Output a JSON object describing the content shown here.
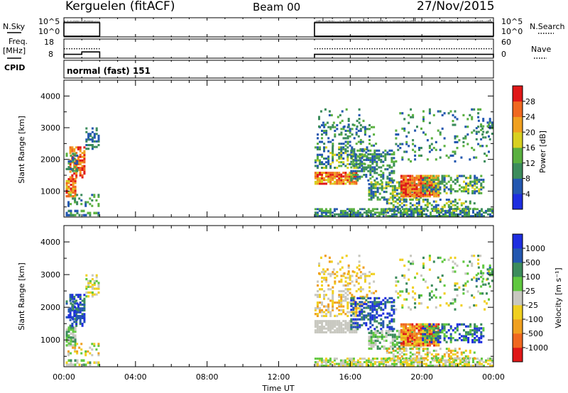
{
  "header": {
    "station": "Kerguelen (fitACF)",
    "beam": "Beam 00",
    "date": "27/Nov/2015"
  },
  "left_labels": {
    "nsky": "N.Sky",
    "freq": "Freq.",
    "freq_unit": "[MHz]",
    "cpid": "CPID"
  },
  "right_labels": {
    "nsearch": "N.Search",
    "nave": "Nave"
  },
  "cpid_text": "normal (fast) 151",
  "colors": {
    "power": [
      "#1e2ee0",
      "#2458b0",
      "#3c8c5c",
      "#5ab040",
      "#d8d020",
      "#f0a020",
      "#f06820",
      "#e01818"
    ],
    "velocity": [
      "#e01818",
      "#f06820",
      "#f0a020",
      "#f0d020",
      "#c8c8c0",
      "#60c840",
      "#3c8c5c",
      "#2458b0",
      "#1e2ee0"
    ]
  },
  "chart_data": [
    {
      "type": "line",
      "panel": "N.Sky / N.Search",
      "ylabel_left": "N.Sky",
      "ylabel_right": "N.Search",
      "y_ticks_left": [
        "10^5",
        "10^0"
      ],
      "y_ticks_right": [
        "10^5",
        "10^0"
      ],
      "segments": [
        {
          "x_start_hours": 0.0,
          "x_end_hours": 2.0
        },
        {
          "x_start_hours": 14.0,
          "x_end_hours": 24.0
        }
      ]
    },
    {
      "type": "line",
      "panel": "Freq / Nave",
      "ylabel_left": "Freq. [MHz]",
      "ylabel_right": "Nave",
      "y_ticks_left": [
        "18",
        "8"
      ],
      "y_ticks_right": [
        "60",
        "0"
      ],
      "series": [
        {
          "name": "Freq.",
          "x": [
            0,
            1,
            1,
            2,
            14,
            24
          ],
          "y": [
            10,
            10,
            12,
            12,
            10,
            10
          ]
        },
        {
          "name": "Nave",
          "x": [
            0,
            2,
            14,
            24
          ],
          "y": [
            40,
            40,
            40,
            40
          ]
        }
      ]
    },
    {
      "type": "heatmap",
      "panel": "Power",
      "ylabel": "Slant Range [km]",
      "y_ticks": [
        "1000",
        "2000",
        "3000",
        "4000"
      ],
      "ylim": [
        180,
        4500
      ],
      "colorbar_label": "Power [dB]",
      "colorbar_ticks": [
        "4",
        "8",
        "12",
        "16",
        "20",
        "24",
        "28"
      ]
    },
    {
      "type": "heatmap",
      "panel": "Velocity",
      "ylabel": "Slant Range [km]",
      "y_ticks": [
        "1000",
        "2000",
        "3000",
        "4000"
      ],
      "ylim": [
        180,
        4500
      ],
      "colorbar_label": "Velocity [m s⁻¹]",
      "colorbar_ticks": [
        "-1000",
        "-500",
        "-100",
        "-25",
        "25",
        "100",
        "500",
        "1000"
      ]
    }
  ],
  "x_axis": {
    "label": "Time UT",
    "range_hours": [
      0,
      24
    ],
    "ticks": [
      "00:00",
      "04:00",
      "08:00",
      "12:00",
      "16:00",
      "20:00",
      "00:00"
    ]
  }
}
